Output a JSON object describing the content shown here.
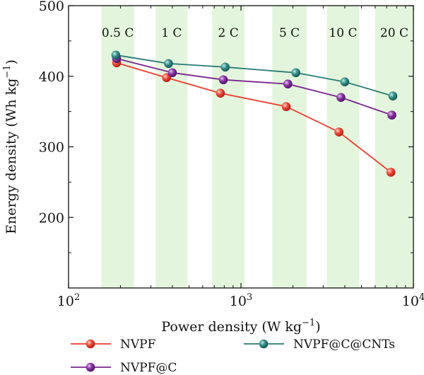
{
  "chart_data": {
    "type": "line",
    "xscale": "log",
    "xlim": [
      100,
      10000
    ],
    "ylim": [
      100,
      500
    ],
    "grid": false,
    "legend_placement": "bottom",
    "xlabel": {
      "main": "Power density (W kg",
      "sup": "−1",
      "tail": ")"
    },
    "ylabel": {
      "main": "Energy density (Wh kg",
      "sup": "−1",
      "tail": ")"
    },
    "x_tick_labels": [
      {
        "value": 100,
        "base": "10",
        "exp": "2"
      },
      {
        "value": 1000,
        "base": "10",
        "exp": "3"
      },
      {
        "value": 10000,
        "base": "10",
        "exp": "4"
      }
    ],
    "y_ticks": [
      200,
      300,
      400,
      500
    ],
    "rate_bands": [
      {
        "label": "0.5 C",
        "from": 155,
        "to": 240
      },
      {
        "label": "1 C",
        "from": 320,
        "to": 490
      },
      {
        "label": "2 C",
        "from": 680,
        "to": 1050
      },
      {
        "label": "5 C",
        "from": 1520,
        "to": 2400
      },
      {
        "label": "10 C",
        "from": 3150,
        "to": 4850
      },
      {
        "label": "20 C",
        "from": 6000,
        "to": 10000
      }
    ],
    "band_color": "#e3f5dc",
    "series": [
      {
        "name": "NVPF",
        "color": "#ee3b2c",
        "x": [
          190,
          370,
          760,
          1830,
          3700,
          7400
        ],
        "y": [
          419,
          398,
          376,
          357,
          321,
          264
        ]
      },
      {
        "name": "NVPF@C",
        "color": "#7a2590",
        "x": [
          190,
          400,
          790,
          1870,
          3800,
          7500
        ],
        "y": [
          425,
          405,
          395,
          389,
          370,
          345
        ]
      },
      {
        "name": "NVPF@C@CNTs",
        "color": "#2b7b78",
        "x": [
          188,
          380,
          810,
          2080,
          4000,
          7600
        ],
        "y": [
          430,
          418,
          413,
          405,
          392,
          372
        ]
      }
    ]
  }
}
